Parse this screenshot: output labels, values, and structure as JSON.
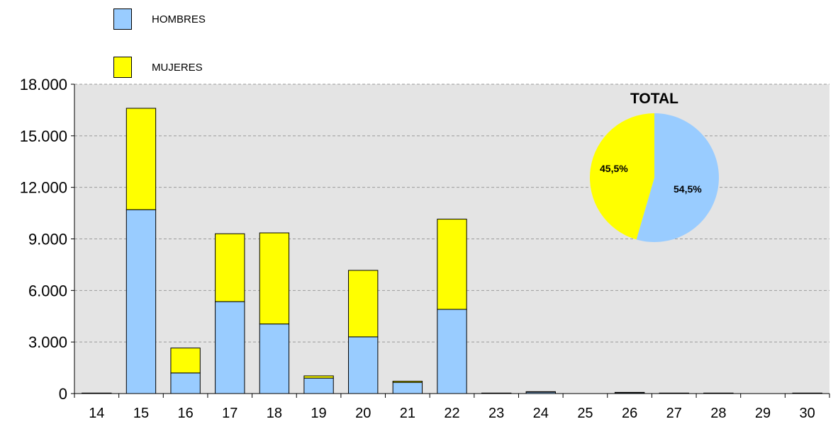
{
  "legend": {
    "men_label": "HOMBRES",
    "women_label": "MUJERES"
  },
  "colors": {
    "men": "#99ccff",
    "women": "#ffff00",
    "plot_bg": "#e4e4e4",
    "grid": "#9a9a9a"
  },
  "chart_data": [
    {
      "type": "bar",
      "stacked": true,
      "categories": [
        "14",
        "15",
        "16",
        "17",
        "18",
        "19",
        "20",
        "21",
        "22",
        "23",
        "24",
        "25",
        "26",
        "27",
        "28",
        "29",
        "30"
      ],
      "series": [
        {
          "name": "HOMBRES",
          "values": [
            20,
            10700,
            1200,
            5350,
            4050,
            900,
            3300,
            650,
            4900,
            20,
            80,
            0,
            50,
            20,
            20,
            0,
            20
          ]
        },
        {
          "name": "MUJERES",
          "values": [
            10,
            5900,
            1450,
            3950,
            5300,
            130,
            3870,
            70,
            5250,
            10,
            30,
            0,
            20,
            10,
            10,
            0,
            10
          ]
        }
      ],
      "ylim": [
        0,
        18000
      ],
      "yticks": [
        "0",
        "3.000",
        "6.000",
        "9.000",
        "12.000",
        "15.000",
        "18.000"
      ],
      "ytick_values": [
        0,
        3000,
        6000,
        9000,
        12000,
        15000,
        18000
      ],
      "grid": true,
      "legend_position": "top-left"
    },
    {
      "type": "pie",
      "title": "TOTAL",
      "slices": [
        {
          "series": "HOMBRES",
          "value": 54.5,
          "label": "54,5%"
        },
        {
          "series": "MUJERES",
          "value": 45.5,
          "label": "45,5%"
        }
      ]
    }
  ]
}
